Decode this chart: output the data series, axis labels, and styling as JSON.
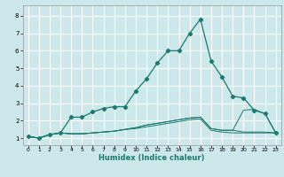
{
  "xlabel": "Humidex (Indice chaleur)",
  "bg_color": "#cce8ea",
  "grid_color": "#ffffff",
  "line_color": "#1a7a6e",
  "xlim": [
    -0.5,
    23.5
  ],
  "ylim": [
    0.6,
    8.6
  ],
  "xticks": [
    0,
    1,
    2,
    3,
    4,
    5,
    6,
    7,
    8,
    9,
    10,
    11,
    12,
    13,
    14,
    15,
    16,
    17,
    18,
    19,
    20,
    21,
    22,
    23
  ],
  "yticks": [
    1,
    2,
    3,
    4,
    5,
    6,
    7,
    8
  ],
  "series": [
    {
      "y": [
        1.1,
        1.0,
        1.2,
        1.3,
        2.2,
        2.2,
        2.5,
        2.7,
        2.8,
        2.8,
        3.7,
        4.4,
        5.3,
        6.0,
        6.0,
        7.0,
        7.8,
        5.4,
        4.5,
        3.4,
        3.3,
        2.6,
        2.4,
        1.3
      ],
      "marker": true
    },
    {
      "y": [
        1.1,
        1.0,
        1.2,
        1.3,
        1.25,
        1.25,
        1.3,
        1.35,
        1.4,
        1.5,
        1.6,
        1.75,
        1.85,
        1.95,
        2.05,
        2.15,
        2.2,
        1.55,
        1.45,
        1.45,
        2.6,
        2.65,
        2.4,
        1.3
      ],
      "marker": false
    },
    {
      "y": [
        1.1,
        1.0,
        1.2,
        1.3,
        1.25,
        1.25,
        1.3,
        1.35,
        1.4,
        1.5,
        1.6,
        1.75,
        1.85,
        1.95,
        2.05,
        2.15,
        2.2,
        1.55,
        1.45,
        1.45,
        1.35,
        1.35,
        1.35,
        1.3
      ],
      "marker": false
    },
    {
      "y": [
        1.1,
        1.0,
        1.2,
        1.3,
        1.25,
        1.25,
        1.3,
        1.35,
        1.4,
        1.5,
        1.55,
        1.65,
        1.75,
        1.85,
        1.95,
        2.05,
        2.1,
        1.45,
        1.35,
        1.3,
        1.3,
        1.3,
        1.3,
        1.3
      ],
      "marker": false
    }
  ]
}
